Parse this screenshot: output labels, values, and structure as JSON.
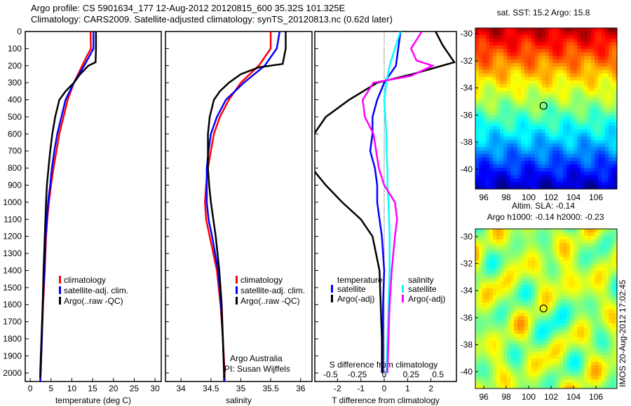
{
  "title_line1": "Argo profile: CS 5901634_177 12-Aug-2012 20120815_600 35.32S 101.325E",
  "title_line2": "Climatology: CARS2009. Satellite-adjusted climatology: synTS_20120813.nc (0.62d later)",
  "side_label": "IMOS 20-Aug-2012 17:02:45",
  "chart_data": [
    {
      "type": "line",
      "xlabel": "temperature (deg C)",
      "ylabel": "",
      "xlim": [
        -1.2,
        31.5
      ],
      "ylim": [
        2050,
        0
      ],
      "xticks": [
        0,
        5,
        10,
        15,
        20,
        25,
        30
      ],
      "yticks": [
        0,
        100,
        200,
        300,
        400,
        500,
        600,
        700,
        800,
        900,
        1000,
        1100,
        1200,
        1300,
        1400,
        1500,
        1600,
        1700,
        1800,
        1900,
        2000
      ],
      "legend": [
        "climatology",
        "satellite-adj. clim.",
        "Argo(..raw -QC)"
      ],
      "series": [
        {
          "name": "climatology",
          "color": "#ff0000",
          "depth": [
            0,
            100,
            150,
            200,
            300,
            400,
            500,
            600,
            700,
            800,
            900,
            1000,
            1100,
            1200,
            1400,
            1600,
            1800,
            2000,
            2050
          ],
          "values": [
            14.5,
            14.6,
            13.5,
            12.5,
            10.5,
            9,
            8,
            7,
            6.3,
            5.6,
            5,
            4.5,
            4.1,
            3.8,
            3.5,
            3.1,
            2.8,
            2.5,
            2.4
          ]
        },
        {
          "name": "satellite-adj. clim.",
          "color": "#0000ff",
          "depth": [
            0,
            100,
            200,
            300,
            400,
            500,
            600,
            700,
            800,
            900,
            1000,
            1100,
            1200,
            1400,
            1600,
            1800,
            2000,
            2050
          ],
          "values": [
            15.2,
            15.2,
            13,
            10.5,
            8.5,
            7.5,
            6.5,
            5.8,
            5.2,
            4.8,
            4.3,
            4,
            3.7,
            3.4,
            3,
            2.8,
            2.5,
            2.4
          ]
        },
        {
          "name": "Argo(..raw -QC)",
          "color": "#000000",
          "depth": [
            0,
            100,
            180,
            200,
            250,
            300,
            350,
            400,
            500,
            600,
            700,
            800,
            900,
            1000,
            1200,
            1400,
            1600,
            1800,
            2000,
            2030
          ],
          "values": [
            15.8,
            15.8,
            15.7,
            14,
            12,
            10.5,
            8.5,
            7,
            6,
            5.3,
            4.8,
            4.4,
            4,
            3.8,
            3.5,
            3.2,
            3,
            2.7,
            2.4,
            2.4
          ]
        }
      ]
    },
    {
      "type": "line",
      "xlabel": "salinity",
      "xlim": [
        33.74,
        36.19
      ],
      "ylim": [
        2050,
        0
      ],
      "xticks": [
        34,
        34.5,
        35,
        35.5,
        36
      ],
      "legend": [
        "climatology",
        "satellite-adj. clim.",
        "Argo(..raw -QC)"
      ],
      "annotation": [
        "Argo Australia",
        "PI: Susan Wijffels"
      ],
      "series": [
        {
          "name": "climatology",
          "color": "#ff0000",
          "depth": [
            0,
            100,
            150,
            200,
            300,
            400,
            500,
            600,
            700,
            800,
            900,
            1000,
            1100,
            1200,
            1400,
            1600,
            1800,
            2000,
            2050
          ],
          "values": [
            35.5,
            35.5,
            35.4,
            35.3,
            35.0,
            34.8,
            34.65,
            34.55,
            34.5,
            34.45,
            34.42,
            34.4,
            34.42,
            34.48,
            34.6,
            34.66,
            34.7,
            34.73,
            34.73
          ]
        },
        {
          "name": "satellite-adj. clim.",
          "color": "#0000ff",
          "depth": [
            0,
            100,
            200,
            300,
            400,
            500,
            600,
            700,
            800,
            900,
            1000,
            1100,
            1200,
            1400,
            1600,
            1800,
            2000,
            2050
          ],
          "values": [
            35.65,
            35.6,
            35.4,
            35.05,
            34.75,
            34.6,
            34.5,
            34.46,
            34.43,
            34.43,
            34.43,
            34.46,
            34.52,
            34.62,
            34.67,
            34.7,
            34.72,
            34.72
          ]
        },
        {
          "name": "Argo(..raw -QC)",
          "color": "#000000",
          "depth": [
            0,
            100,
            190,
            210,
            250,
            300,
            350,
            400,
            500,
            600,
            700,
            800,
            900,
            1000,
            1200,
            1400,
            1600,
            1800,
            2000,
            2030
          ],
          "values": [
            35.75,
            35.75,
            35.7,
            35.3,
            35.0,
            34.8,
            34.65,
            34.55,
            34.48,
            34.45,
            34.45,
            34.45,
            34.47,
            34.5,
            34.58,
            34.64,
            34.68,
            34.7,
            34.72,
            34.72
          ]
        }
      ]
    },
    {
      "type": "line",
      "xlabel": "T difference from climatology",
      "xlabel2": "S difference from climatology",
      "xlim": [
        -2.97,
        3.09
      ],
      "ylim": [
        2050,
        0
      ],
      "xticks": [
        -2,
        -1,
        0,
        1,
        2
      ],
      "xticks2": [
        -0.5,
        -0.25,
        0,
        0.25,
        0.5
      ],
      "s_scale": 4.6,
      "legend_headers": [
        "temperature",
        "salinity"
      ],
      "legend": [
        "satellite",
        "Argo(-adj)",
        "satellite",
        "Argo(-adj)"
      ],
      "series": [
        {
          "name": "temperature satellite",
          "var": "T",
          "color": "#0000ff",
          "depth": [
            0,
            100,
            200,
            300,
            400,
            500,
            600,
            700,
            800,
            900,
            1000,
            1100,
            1200,
            1400,
            1600,
            1800,
            2000
          ],
          "values": [
            0.7,
            0.6,
            0.5,
            0,
            -0.3,
            -0.5,
            -0.5,
            -0.6,
            -0.4,
            -0.3,
            -0.3,
            -0.2,
            -0.1,
            0,
            -0.05,
            -0.05,
            -0.05
          ]
        },
        {
          "name": "temperature Argo(-adj)",
          "var": "T",
          "color": "#000000",
          "depth": [
            0,
            80,
            180,
            250,
            300,
            400,
            500,
            600,
            650,
            700,
            750,
            800,
            900,
            1000,
            1100,
            1200,
            1400,
            1600,
            1800,
            2000
          ],
          "values": [
            2.2,
            2.5,
            3.0,
            1.2,
            -0.3,
            -1.5,
            -2.5,
            -3,
            -3.2,
            -3,
            -3,
            -3.1,
            -2.5,
            -1.8,
            -1,
            -0.5,
            -0.2,
            -0.15,
            -0.1,
            -0.1
          ]
        },
        {
          "name": "salinity satellite",
          "var": "S",
          "color": "#00ffff",
          "depth": [
            0,
            100,
            200,
            300,
            400,
            500,
            600,
            700,
            800,
            900,
            1000,
            1200,
            1400,
            1600,
            1800,
            2000
          ],
          "values": [
            0.15,
            0.1,
            0.05,
            0.02,
            0,
            0.01,
            0.02,
            0.02,
            0.03,
            0.03,
            0.04,
            0.05,
            0.05,
            0.04,
            0.03,
            0.02
          ]
        },
        {
          "name": "salinity Argo(-adj)",
          "var": "S",
          "color": "#ff00ff",
          "depth": [
            0,
            100,
            170,
            200,
            260,
            300,
            400,
            500,
            600,
            800,
            900,
            1000,
            1100,
            1200,
            1400,
            1600,
            1800,
            2000
          ],
          "values": [
            0.35,
            0.25,
            0.3,
            0.45,
            0.25,
            -0.1,
            -0.2,
            -0.18,
            -0.1,
            -0.05,
            0,
            0.1,
            0.12,
            0.1,
            0.07,
            0.05,
            0.04,
            0.03
          ]
        }
      ]
    },
    {
      "type": "heatmap",
      "title": "sat. SST: 15.2 Argo: 15.8",
      "xticks": [
        96,
        98,
        100,
        102,
        104,
        106
      ],
      "yticks": [
        -30,
        -32,
        -34,
        -36,
        -38,
        -40
      ],
      "marker": [
        101.325,
        -35.32
      ]
    },
    {
      "type": "heatmap",
      "title": "Altim. SLA: -0.14",
      "title2": "Argo h1000: -0.14 h2000: -0.23",
      "xticks": [
        96,
        98,
        100,
        102,
        104,
        106
      ],
      "yticks": [
        -30,
        -32,
        -34,
        -36,
        -38,
        -40
      ],
      "marker": [
        101.325,
        -35.32
      ]
    }
  ]
}
